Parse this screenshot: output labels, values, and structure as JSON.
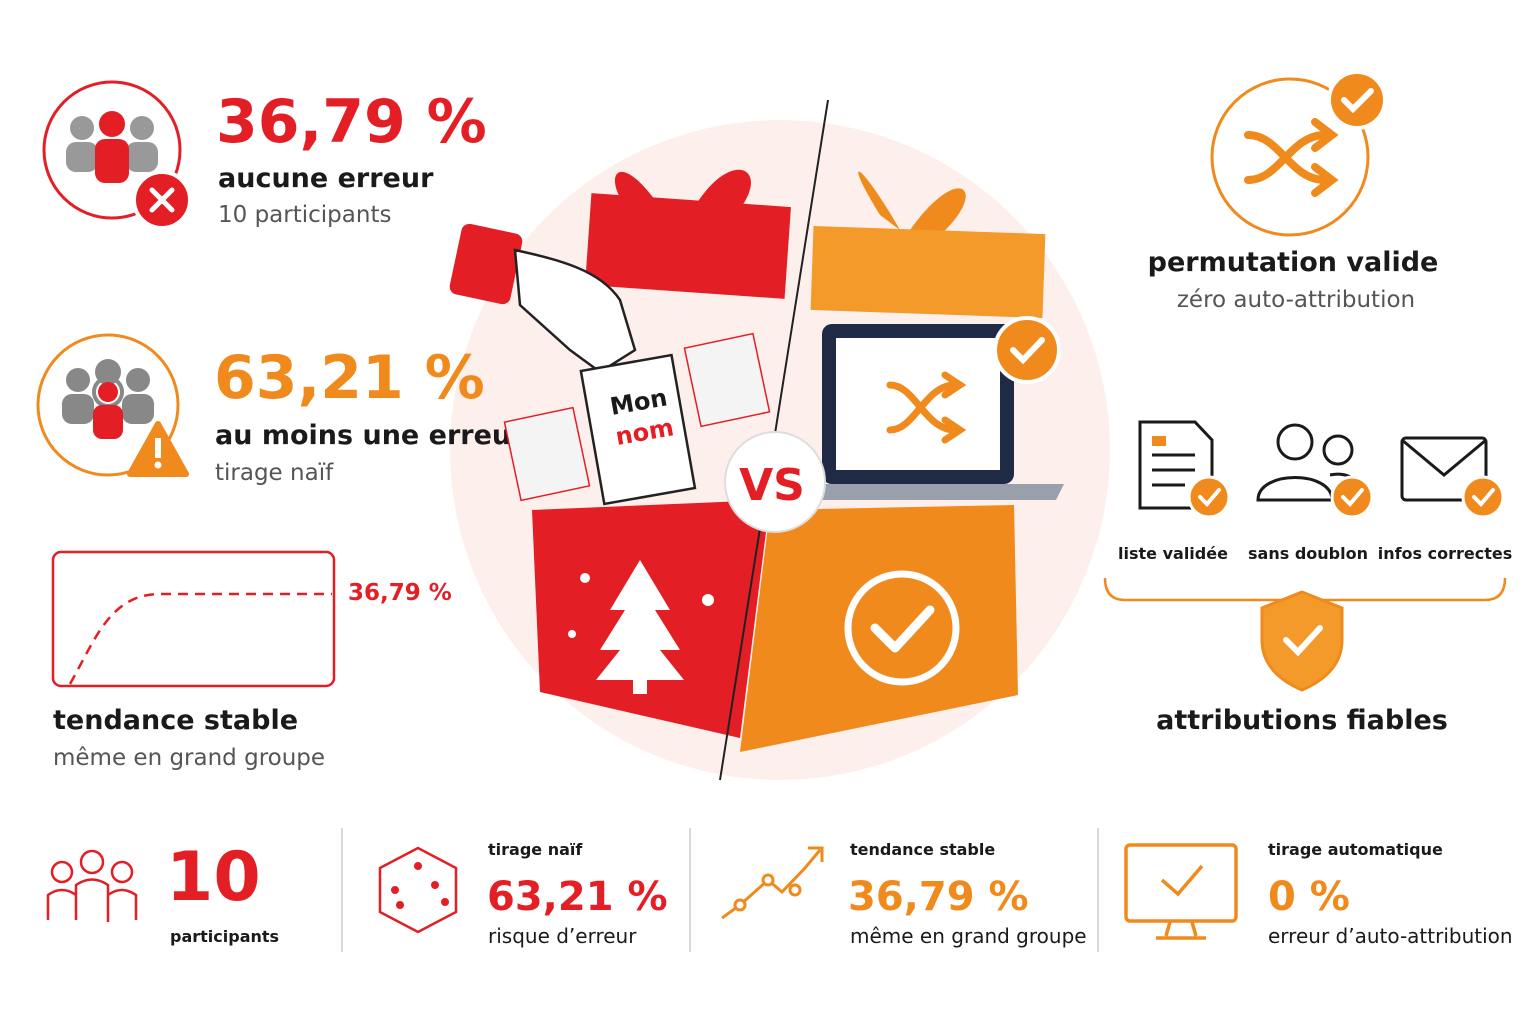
{
  "left": {
    "stat_no_error": {
      "value": "36,79 %",
      "label": "aucune erreur",
      "sub": "10 participants"
    },
    "stat_error": {
      "value": "63,21 %",
      "label": "au moins une erreur",
      "sub": "tirage naïf"
    },
    "trend": {
      "value": "36,79 %",
      "label": "tendance stable",
      "sub": "même en grand groupe"
    }
  },
  "center": {
    "note": [
      "Mon",
      "nom"
    ],
    "vs": "VS"
  },
  "right": {
    "title": "permutation valide",
    "sub": "zéro auto-attribution",
    "checks": [
      "liste validée",
      "sans doublon",
      "infos correctes"
    ],
    "result": "attributions fiables"
  },
  "footer": [
    {
      "value": "10",
      "label": "participants"
    },
    {
      "title": "tirage naïf",
      "value": "63,21 %",
      "label": "risque d’erreur"
    },
    {
      "title": "tendance stable",
      "value": "36,79 %",
      "label": "même en grand groupe"
    },
    {
      "title": "tirage automatique",
      "value": "0 %",
      "label": "erreur d’auto-attribution"
    }
  ]
}
